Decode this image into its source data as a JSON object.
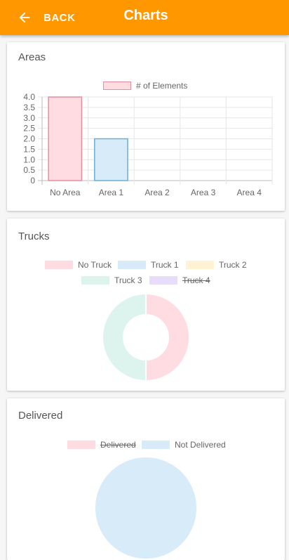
{
  "header": {
    "back_label": "BACK",
    "title": "Charts",
    "color": "#ff9800"
  },
  "cards": {
    "areas": {
      "title": "Areas"
    },
    "trucks": {
      "title": "Trucks"
    },
    "delivered": {
      "title": "Delivered"
    }
  },
  "chart_data": [
    {
      "type": "bar",
      "title": "Areas",
      "categories": [
        "No Area",
        "Area 1",
        "Area 2",
        "Area 3",
        "Area 4"
      ],
      "series": [
        {
          "name": "# of Elements",
          "values": [
            4,
            2,
            0,
            0,
            0
          ]
        }
      ],
      "ylim": [
        0,
        4
      ],
      "yticks": [
        "4.0",
        "3.5",
        "3.0",
        "2.5",
        "2.0",
        "1.5",
        "1.0",
        "0.5",
        "0"
      ],
      "bar_colors": [
        {
          "fill": "#ffdbe2",
          "stroke": "#e88ca0"
        },
        {
          "fill": "#d8ebf8",
          "stroke": "#6aaed6"
        }
      ],
      "legend": "top"
    },
    {
      "type": "pie",
      "title": "Trucks",
      "donut": true,
      "labels": [
        "No Truck",
        "Truck 1",
        "Truck 2",
        "Truck 3",
        "Truck 4"
      ],
      "values": [
        1,
        0,
        0,
        1,
        0
      ],
      "hidden": [
        false,
        false,
        false,
        false,
        true
      ],
      "colors": [
        "#ffdbe2",
        "#d8ebf8",
        "#fff3d4",
        "#dcf3ee",
        "#e8dcfb"
      ],
      "legend": "top"
    },
    {
      "type": "pie",
      "title": "Delivered",
      "donut": false,
      "labels": [
        "Delivered",
        "Not Delivered"
      ],
      "values": [
        0,
        1
      ],
      "hidden": [
        true,
        false
      ],
      "colors": [
        "#ffdbe2",
        "#d8ebf8"
      ],
      "legend": "top"
    }
  ]
}
